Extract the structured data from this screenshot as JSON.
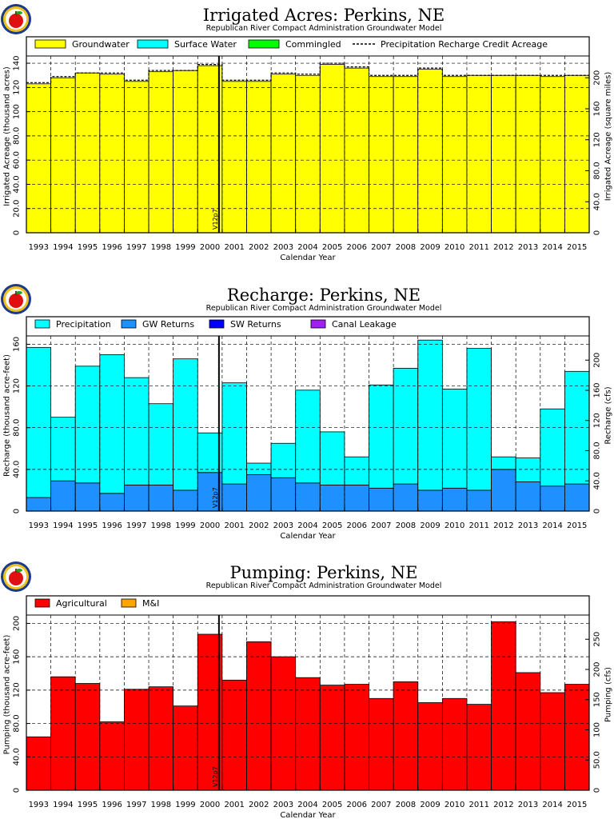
{
  "years": [
    "1993",
    "1994",
    "1995",
    "1996",
    "1997",
    "1998",
    "1999",
    "2000",
    "2001",
    "2002",
    "2003",
    "2004",
    "2005",
    "2006",
    "2007",
    "2008",
    "2009",
    "2010",
    "2011",
    "2012",
    "2013",
    "2014",
    "2015"
  ],
  "marker_label": "V12p7",
  "colors": {
    "groundwater": "#ffff00",
    "surface": "#00ffff",
    "commingled": "#00ff00",
    "precip": "#00ffff",
    "gw_returns": "#1e90ff",
    "sw_returns": "#0000ff",
    "canal": "#a020f0",
    "agricultural": "#ff0000",
    "mi": "#ffa500"
  },
  "chart_data": [
    {
      "type": "bar",
      "title": "Irrigated Acres: Perkins, NE",
      "subtitle": "Republican River Compact Administration Groundwater Model",
      "xlabel": "Calendar Year",
      "ylabel": "Irrigated Acreage (thousand acres)",
      "y2label": "Irrigated Acreage (square miles)",
      "ylim": [
        0,
        146
      ],
      "yticks": [
        "0",
        "20.0",
        "40.0",
        "60.0",
        "80.0",
        "100",
        "120",
        "140"
      ],
      "y2ticks": [
        {
          "v": 0,
          "label": "0"
        },
        {
          "v": 25.6,
          "label": "40.0"
        },
        {
          "v": 51.2,
          "label": "80.0"
        },
        {
          "v": 76.8,
          "label": "120"
        },
        {
          "v": 102.4,
          "label": "160"
        },
        {
          "v": 128,
          "label": "200"
        }
      ],
      "legend": [
        "Groundwater",
        "Surface Water",
        "Commingled",
        "Precipitation Recharge Credit Acreage"
      ],
      "series": [
        {
          "name": "Groundwater",
          "values": [
            123,
            128,
            132,
            131,
            125,
            133,
            134,
            138,
            125,
            125,
            131,
            130,
            139,
            136,
            129,
            129,
            135,
            129,
            130,
            130,
            130,
            129,
            130
          ]
        },
        {
          "name": "Surface Water",
          "values": [
            0,
            0,
            0,
            0,
            0,
            0,
            0,
            0,
            0,
            0,
            0,
            0,
            0,
            0,
            0,
            0,
            0,
            0,
            0,
            0,
            0,
            0,
            0
          ]
        },
        {
          "name": "Commingled",
          "values": [
            0,
            0,
            0,
            0,
            0,
            0,
            0,
            0,
            0,
            0,
            0,
            0,
            0,
            0,
            0,
            0,
            0,
            0,
            0,
            0,
            0,
            0,
            0
          ]
        }
      ],
      "line_values": [
        124,
        129,
        132,
        132,
        126,
        134,
        134,
        139,
        126,
        126,
        132,
        131,
        140,
        137,
        130,
        130,
        136,
        130,
        130,
        130,
        130,
        130,
        130
      ]
    },
    {
      "type": "bar",
      "title": "Recharge: Perkins, NE",
      "subtitle": "Republican River Compact Administration Groundwater Model",
      "xlabel": "Calendar Year",
      "ylabel": "Recharge (thousand acre-feet)",
      "y2label": "Recharge (cfs)",
      "ylim": [
        0,
        168
      ],
      "yticks": [
        "0",
        "40.0",
        "80.0",
        "120",
        "160"
      ],
      "y2ticks": [
        {
          "v": 0,
          "label": "0"
        },
        {
          "v": 28.96,
          "label": "40.0"
        },
        {
          "v": 57.92,
          "label": "80.0"
        },
        {
          "v": 86.88,
          "label": "120"
        },
        {
          "v": 115.84,
          "label": "160"
        },
        {
          "v": 144.8,
          "label": "200"
        }
      ],
      "legend": [
        "Precipitation",
        "GW Returns",
        "SW Returns",
        "Canal Leakage"
      ],
      "series": [
        {
          "name": "Precipitation",
          "values": [
            144,
            61,
            112,
            133,
            103,
            78,
            126,
            38,
            97,
            11,
            33,
            89,
            51,
            27,
            99,
            111,
            144,
            95,
            136,
            12,
            23,
            74,
            108
          ]
        },
        {
          "name": "GW Returns",
          "values": [
            13,
            29,
            27,
            17,
            25,
            25,
            20,
            37,
            26,
            35,
            32,
            27,
            25,
            25,
            22,
            26,
            20,
            22,
            20,
            40,
            28,
            24,
            26
          ]
        },
        {
          "name": "SW Returns",
          "values": [
            0,
            0,
            0,
            0,
            0,
            0,
            0,
            0,
            0,
            0,
            0,
            0,
            0,
            0,
            0,
            0,
            0,
            0,
            0,
            0,
            0,
            0,
            0
          ]
        },
        {
          "name": "Canal Leakage",
          "values": [
            0,
            0,
            0,
            0,
            0,
            0,
            0,
            0,
            0,
            0,
            0,
            0,
            0,
            0,
            0,
            0,
            0,
            0,
            0,
            0,
            0,
            0,
            0
          ]
        }
      ]
    },
    {
      "type": "bar",
      "title": "Pumping: Perkins, NE",
      "subtitle": "Republican River Compact Administration Groundwater Model",
      "xlabel": "Calendar Year",
      "ylabel": "Pumping (thousand acre-feet)",
      "y2label": "Pumping (cfs)",
      "ylim": [
        0,
        210
      ],
      "yticks": [
        "0",
        "40.0",
        "80.0",
        "120",
        "160",
        "200"
      ],
      "y2ticks": [
        {
          "v": 0,
          "label": "0"
        },
        {
          "v": 36.2,
          "label": "50.0"
        },
        {
          "v": 72.4,
          "label": "100"
        },
        {
          "v": 108.6,
          "label": "150"
        },
        {
          "v": 144.8,
          "label": "200"
        },
        {
          "v": 181,
          "label": "250"
        }
      ],
      "legend": [
        "Agricultural",
        "M&I"
      ],
      "series": [
        {
          "name": "Agricultural",
          "values": [
            64,
            136,
            128,
            82,
            121,
            124,
            101,
            187,
            132,
            178,
            160,
            135,
            126,
            127,
            110,
            130,
            105,
            110,
            103,
            202,
            141,
            117,
            127
          ]
        },
        {
          "name": "M&I",
          "values": [
            0,
            0,
            0,
            0,
            0,
            0,
            0,
            0,
            0,
            0,
            0,
            0,
            0,
            0,
            0,
            0,
            0,
            0,
            0,
            0,
            0,
            0,
            0
          ]
        }
      ]
    }
  ]
}
